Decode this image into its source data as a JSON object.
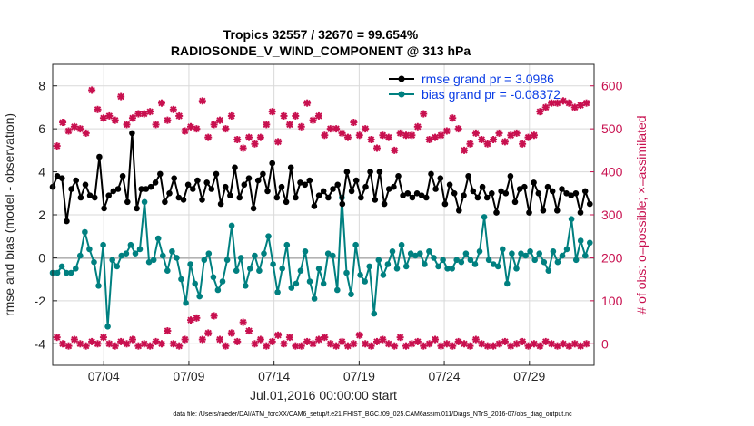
{
  "chart_data": {
    "type": "line",
    "title_line1": "Tropics 32557 / 32670 = 99.654%",
    "title_line2": "RADIOSONDE_V_WIND_COMPONENT @ 313 hPa",
    "xlabel": "Jul.01,2016 00:00:00 start",
    "ylabel": "rmse and bias (model - observation)",
    "ylabel_right": "# of obs: o=possible; ×=assimilated",
    "footnote": "data file: /Users/raeder/DAI/ATM_forcXX/CAM6_setup/f.e21.FHIST_BGC.f09_025.CAM6assim.011/Diags_NTrS_2016-07/obs_diag_output.nc",
    "xlim": [
      1,
      32.8
    ],
    "ylim": [
      -5,
      9
    ],
    "ylim_right": [
      -50,
      650
    ],
    "x_ticks": [
      4,
      9,
      14,
      19,
      24,
      29
    ],
    "x_tick_labels": [
      "07/04",
      "07/09",
      "07/14",
      "07/19",
      "07/24",
      "07/29"
    ],
    "y_ticks": [
      -4,
      -2,
      0,
      2,
      4,
      6,
      8
    ],
    "y_tick_labels": [
      "-4",
      "-2",
      "0",
      "2",
      "4",
      "6",
      "8"
    ],
    "y_right_ticks": [
      0,
      100,
      200,
      300,
      400,
      500,
      600
    ],
    "y_right_tick_labels": [
      "0",
      "100",
      "200",
      "300",
      "400",
      "500",
      "600"
    ],
    "legend": {
      "position": "top-right",
      "entries": [
        "rmse grand pr = 3.0986",
        "bias grand pr = -0.08372"
      ]
    },
    "colors": {
      "rmse": "#000000",
      "bias": "#008080",
      "obs": "#c8104f",
      "zero_line": "#b3b3b3",
      "grid": "#d9d9d9",
      "legend_text": "#0a3ce6"
    },
    "rmse": [
      3.3,
      3.8,
      3.7,
      1.7,
      3.2,
      3.6,
      2.8,
      3.4,
      2.9,
      2.8,
      4.7,
      2.3,
      2.9,
      3.1,
      3.2,
      3.8,
      2.6,
      5.8,
      2.3,
      3.2,
      3.2,
      3.3,
      3.5,
      3.9,
      2.6,
      3.0,
      3.7,
      2.8,
      2.7,
      3.4,
      3.2,
      3.6,
      2.7,
      3.5,
      3.2,
      3.9,
      2.5,
      3.3,
      2.9,
      4.2,
      2.8,
      3.4,
      3.7,
      2.3,
      3.6,
      3.9,
      3.1,
      4.4,
      2.8,
      3.3,
      2.6,
      4.2,
      2.8,
      3.5,
      3.4,
      3.6,
      2.4,
      2.9,
      3.1,
      2.8,
      3.2,
      3.4,
      2.5,
      4.0,
      3.1,
      3.6,
      2.8,
      3.3,
      4.0,
      2.7,
      4.0,
      2.5,
      3.2,
      3.3,
      3.8,
      2.9,
      3.0,
      2.8,
      3.0,
      2.9,
      2.8,
      3.9,
      3.2,
      3.7,
      2.5,
      3.4,
      3.0,
      2.2,
      2.9,
      3.8,
      3.1,
      2.8,
      3.3,
      2.8,
      3.0,
      2.1,
      3.1,
      3.0,
      3.8,
      2.6,
      3.2,
      3.3,
      2.1,
      3.5,
      3.0,
      2.2,
      3.3,
      3.1,
      2.2,
      3.2,
      3.0,
      2.9,
      3.0,
      2.1,
      3.1,
      2.5
    ],
    "bias": [
      -0.7,
      -0.7,
      -0.4,
      -0.7,
      -0.7,
      -0.5,
      0.1,
      1.2,
      0.4,
      -0.2,
      -1.3,
      0.6,
      -3.2,
      -0.1,
      -0.4,
      0.1,
      0.2,
      0.6,
      0.2,
      0.4,
      2.6,
      -0.2,
      -0.1,
      0.9,
      0.1,
      -0.6,
      0.3,
      0.0,
      -1.0,
      -2.1,
      -0.3,
      -1.2,
      -1.8,
      -0.1,
      0.2,
      -0.9,
      -1.5,
      -1.1,
      -0.1,
      1.5,
      -0.6,
      0.0,
      -1.3,
      -0.5,
      0.1,
      -0.6,
      0.2,
      1.0,
      -0.3,
      -1.6,
      -0.5,
      0.6,
      -1.4,
      -1.2,
      -0.6,
      0.3,
      -1.1,
      -1.9,
      -0.5,
      -1.2,
      0.2,
      0.1,
      -1.5,
      2.8,
      -0.7,
      -1.7,
      0.6,
      -0.8,
      -1.1,
      -0.4,
      -2.6,
      -0.1,
      -0.8,
      -0.3,
      0.3,
      -0.5,
      0.6,
      -0.4,
      0.2,
      0.1,
      0.2,
      -0.3,
      0.3,
      0.0,
      -0.4,
      -0.1,
      -0.5,
      -0.5,
      -0.1,
      -0.2,
      0.2,
      -0.1,
      -0.3,
      0.3,
      1.9,
      -0.1,
      -0.3,
      -0.4,
      0.4,
      -1.2,
      0.2,
      -0.5,
      0.2,
      0.1,
      0.3,
      -0.1,
      0.2,
      -0.2,
      -0.6,
      0.3,
      -0.2,
      0.1,
      0.4,
      1.8,
      -0.1,
      0.8,
      0.1,
      0.7
    ],
    "obs_high": [
      460,
      515,
      495,
      505,
      500,
      490,
      590,
      545,
      525,
      530,
      520,
      575,
      510,
      525,
      535,
      535,
      540,
      510,
      560,
      520,
      545,
      530,
      495,
      505,
      500,
      565,
      480,
      510,
      520,
      500,
      530,
      475,
      455,
      480,
      465,
      480,
      510,
      540,
      470,
      530,
      510,
      530,
      505,
      560,
      520,
      530,
      485,
      500,
      500,
      490,
      480,
      515,
      485,
      500,
      475,
      455,
      485,
      480,
      450,
      490,
      485,
      485,
      505,
      535,
      475,
      480,
      485,
      495,
      525,
      500,
      450,
      465,
      490,
      475,
      465,
      475,
      490,
      470,
      485,
      490,
      465,
      480,
      485,
      540,
      550,
      560,
      560,
      565,
      560,
      550,
      555,
      560
    ],
    "obs_low": [
      15,
      0,
      -5,
      10,
      0,
      -5,
      5,
      0,
      15,
      0,
      -5,
      5,
      0,
      10,
      -5,
      0,
      -5,
      5,
      0,
      30,
      0,
      -5,
      10,
      55,
      60,
      10,
      25,
      65,
      10,
      -5,
      25,
      5,
      50,
      30,
      0,
      10,
      -5,
      5,
      20,
      0,
      15,
      -5,
      -5,
      5,
      0,
      10,
      15,
      0,
      -5,
      5,
      -5,
      0,
      20,
      0,
      -5,
      5,
      10,
      0,
      -5,
      15,
      -5,
      0,
      5,
      -5,
      0,
      10,
      -5,
      0,
      -5,
      5,
      0,
      -5,
      10,
      0,
      -5,
      -5,
      0,
      5,
      -5,
      0,
      5,
      -5,
      0,
      -5,
      5,
      0,
      -5,
      0,
      -5,
      0,
      -5,
      0
    ]
  }
}
